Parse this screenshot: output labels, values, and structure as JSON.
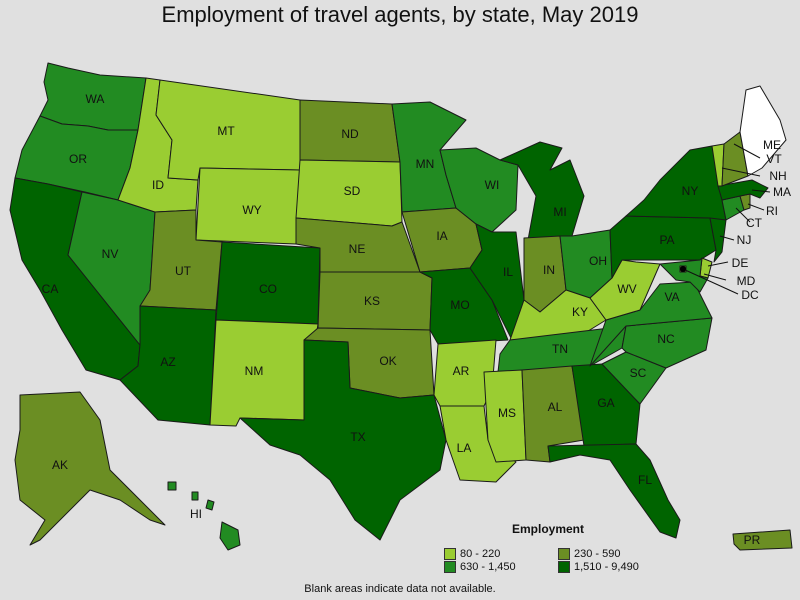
{
  "title": "Employment of travel agents, by state, May 2019",
  "legend": {
    "title": "Employment",
    "bins": [
      {
        "label": "80 - 220",
        "color": "#9acd32"
      },
      {
        "label": "230 - 590",
        "color": "#6b8e23"
      },
      {
        "label": "630 - 1,450",
        "color": "#228b22"
      },
      {
        "label": "1,510 - 9,490",
        "color": "#006400"
      }
    ]
  },
  "no_data_color": "#ffffff",
  "footnote": "Blank areas indicate data not available.",
  "states": [
    {
      "id": "WA",
      "label": "WA",
      "bin": 2
    },
    {
      "id": "OR",
      "label": "OR",
      "bin": 2
    },
    {
      "id": "CA",
      "label": "CA",
      "bin": 3
    },
    {
      "id": "NV",
      "label": "NV",
      "bin": 2
    },
    {
      "id": "ID",
      "label": "ID",
      "bin": 0
    },
    {
      "id": "MT",
      "label": "MT",
      "bin": 0
    },
    {
      "id": "WY",
      "label": "WY",
      "bin": 0
    },
    {
      "id": "UT",
      "label": "UT",
      "bin": 1
    },
    {
      "id": "AZ",
      "label": "AZ",
      "bin": 3
    },
    {
      "id": "CO",
      "label": "CO",
      "bin": 3
    },
    {
      "id": "NM",
      "label": "NM",
      "bin": 0
    },
    {
      "id": "ND",
      "label": "ND",
      "bin": 1
    },
    {
      "id": "SD",
      "label": "SD",
      "bin": 0
    },
    {
      "id": "NE",
      "label": "NE",
      "bin": 1
    },
    {
      "id": "KS",
      "label": "KS",
      "bin": 1
    },
    {
      "id": "OK",
      "label": "OK",
      "bin": 1
    },
    {
      "id": "TX",
      "label": "TX",
      "bin": 3
    },
    {
      "id": "MN",
      "label": "MN",
      "bin": 2
    },
    {
      "id": "IA",
      "label": "IA",
      "bin": 1
    },
    {
      "id": "MO",
      "label": "MO",
      "bin": 3
    },
    {
      "id": "AR",
      "label": "AR",
      "bin": 0
    },
    {
      "id": "LA",
      "label": "LA",
      "bin": 0
    },
    {
      "id": "WI",
      "label": "WI",
      "bin": 2
    },
    {
      "id": "IL",
      "label": "IL",
      "bin": 3
    },
    {
      "id": "MI",
      "label": "MI",
      "bin": 3
    },
    {
      "id": "IN",
      "label": "IN",
      "bin": 1
    },
    {
      "id": "OH",
      "label": "OH",
      "bin": 2
    },
    {
      "id": "KY",
      "label": "KY",
      "bin": 0
    },
    {
      "id": "TN",
      "label": "TN",
      "bin": 2
    },
    {
      "id": "MS",
      "label": "MS",
      "bin": 0
    },
    {
      "id": "AL",
      "label": "AL",
      "bin": 1
    },
    {
      "id": "GA",
      "label": "GA",
      "bin": 3
    },
    {
      "id": "FL",
      "label": "FL",
      "bin": 3
    },
    {
      "id": "SC",
      "label": "SC",
      "bin": 2
    },
    {
      "id": "NC",
      "label": "NC",
      "bin": 2
    },
    {
      "id": "VA",
      "label": "VA",
      "bin": 2
    },
    {
      "id": "WV",
      "label": "WV",
      "bin": 0
    },
    {
      "id": "PA",
      "label": "PA",
      "bin": 3
    },
    {
      "id": "NY",
      "label": "NY",
      "bin": 3
    },
    {
      "id": "NJ",
      "label": "NJ",
      "bin": 3
    },
    {
      "id": "DE",
      "label": "DE",
      "bin": 0
    },
    {
      "id": "MD",
      "label": "MD",
      "bin": 2
    },
    {
      "id": "DC",
      "label": "DC",
      "bin": 0
    },
    {
      "id": "CT",
      "label": "CT",
      "bin": 2
    },
    {
      "id": "RI",
      "label": "RI",
      "bin": 1
    },
    {
      "id": "MA",
      "label": "MA",
      "bin": 3
    },
    {
      "id": "VT",
      "label": "VT",
      "bin": 0
    },
    {
      "id": "NH",
      "label": "NH",
      "bin": 1
    },
    {
      "id": "ME",
      "label": "ME",
      "bin": null
    },
    {
      "id": "AK",
      "label": "AK",
      "bin": 1
    },
    {
      "id": "HI",
      "label": "HI",
      "bin": 2
    },
    {
      "id": "PR",
      "label": "PR",
      "bin": 1
    }
  ]
}
